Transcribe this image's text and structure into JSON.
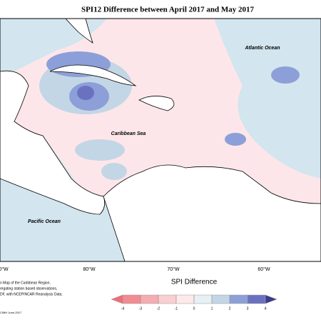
{
  "header": {
    "title": "SPI12 Difference between April 2017 and May 2017"
  },
  "map": {
    "labels": [
      "Atlantic Ocean",
      "Caribbean Sea",
      "Pacific Ocean"
    ],
    "longitude_labels": [
      "0°W",
      "80°W",
      "70°W",
      "60°W"
    ]
  },
  "legend": {
    "title": "SPI Difference",
    "ticks": [
      -4,
      -3,
      -2,
      -1,
      0,
      1,
      2,
      3,
      4
    ],
    "colors": [
      "#ee6e78",
      "#f28b92",
      "#f5adb2",
      "#f9cfd2",
      "#fde9ea",
      "#e6f0f5",
      "#c3d6e5",
      "#8d9fd8",
      "#6a72c0",
      "#3c3c8c"
    ]
  },
  "footnote": {
    "lines": [
      "n Map of the Caribbean Region.",
      "regating station based observations,",
      "DF, with NCEP/NCAR Reanalysis Data.",
      "CIMH June-2017"
    ]
  }
}
